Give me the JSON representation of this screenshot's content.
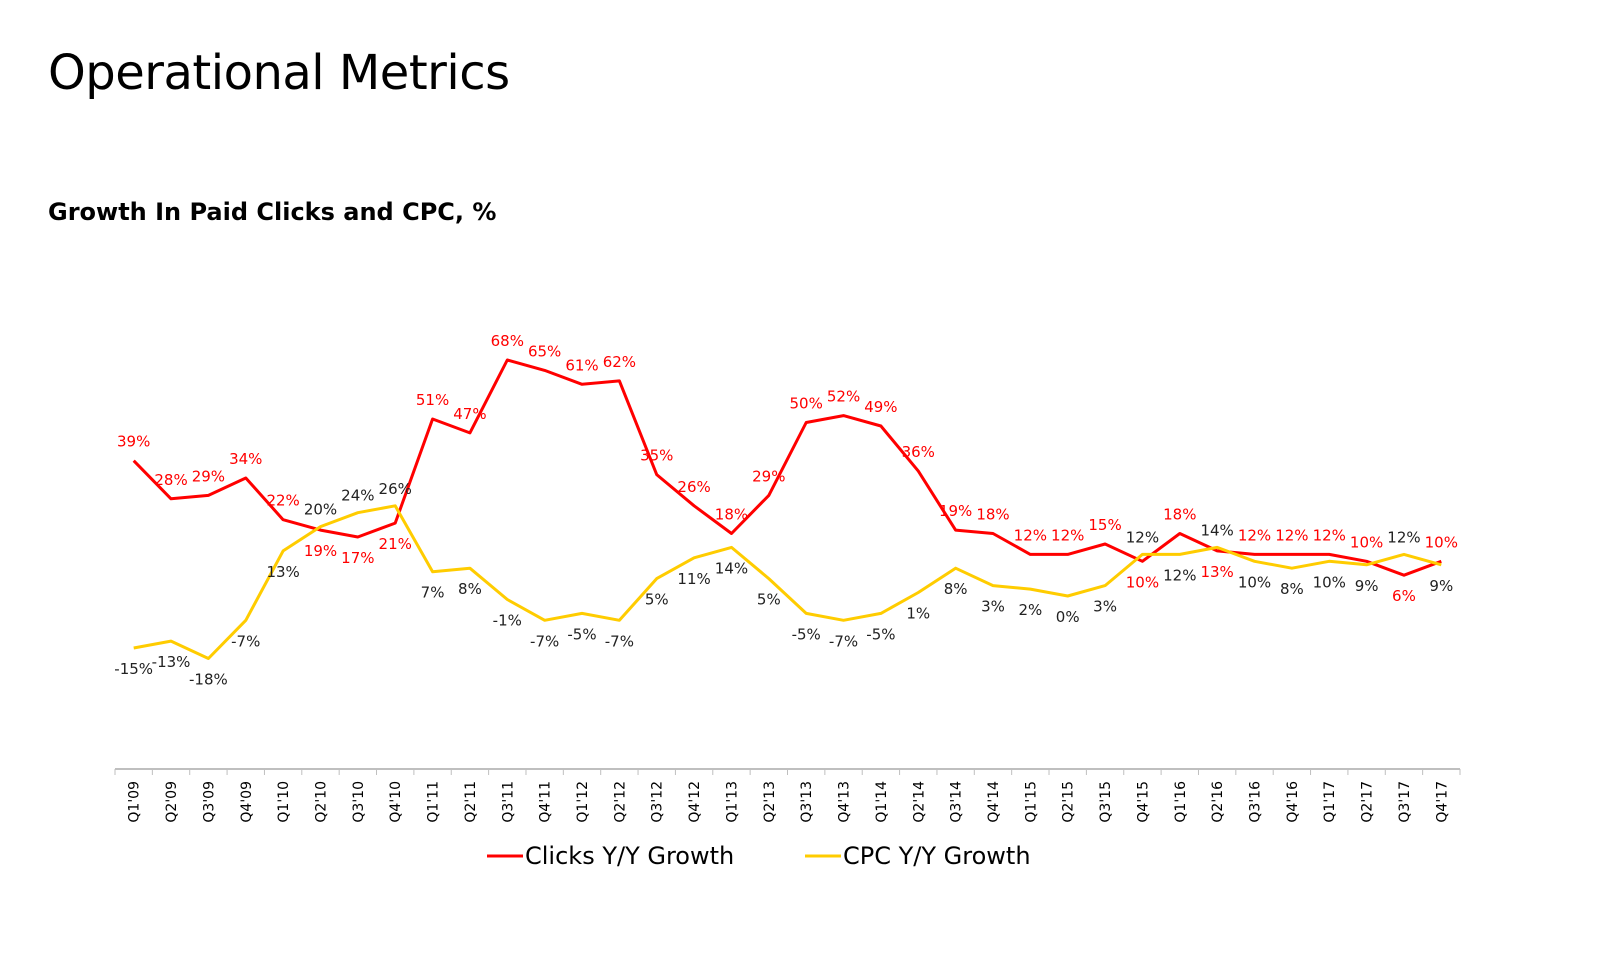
{
  "page": {
    "title": "Operational Metrics",
    "subtitle": "Growth In Paid Clicks and CPC, %"
  },
  "chart_data": {
    "type": "line",
    "title": "Growth In Paid Clicks and CPC, %",
    "xlabel": "",
    "ylabel": "",
    "ylim": [
      -30,
      80
    ],
    "grid": false,
    "legend": "bottom",
    "categories": [
      "Q1'09",
      "Q2'09",
      "Q3'09",
      "Q4'09",
      "Q1'10",
      "Q2'10",
      "Q3'10",
      "Q4'10",
      "Q1'11",
      "Q2'11",
      "Q3'11",
      "Q4'11",
      "Q1'12",
      "Q2'12",
      "Q3'12",
      "Q4'12",
      "Q1'13",
      "Q2'13",
      "Q3'13",
      "Q4'13",
      "Q1'14",
      "Q2'14",
      "Q3'14",
      "Q4'14",
      "Q1'15",
      "Q2'15",
      "Q3'15",
      "Q4'15",
      "Q1'16",
      "Q2'16",
      "Q3'16",
      "Q4'16",
      "Q1'17",
      "Q2'17",
      "Q3'17",
      "Q4'17"
    ],
    "series": [
      {
        "name": "Clicks Y/Y Growth",
        "color": "#ff0000",
        "label_color": "#ff0000",
        "values": [
          39,
          28,
          29,
          34,
          22,
          19,
          17,
          21,
          51,
          47,
          68,
          65,
          61,
          62,
          35,
          26,
          18,
          29,
          50,
          52,
          49,
          36,
          19,
          18,
          12,
          12,
          15,
          10,
          18,
          13,
          12,
          12,
          12,
          10,
          6,
          10
        ],
        "labels": [
          "39%",
          "28%",
          "29%",
          "34%",
          "22%",
          "19%",
          "17%",
          "21%",
          "51%",
          "47%",
          "68%",
          "65%",
          "61%",
          "62%",
          "35%",
          "26%",
          "18%",
          "29%",
          "50%",
          "52%",
          "49%",
          "36%",
          "19%",
          "18%",
          "12%",
          "12%",
          "15%",
          "10%",
          "18%",
          "13%",
          "12%",
          "12%",
          "12%",
          "10%",
          "6%",
          "10%"
        ]
      },
      {
        "name": "CPC Y/Y Growth",
        "color": "#ffcc00",
        "label_color": "#222222",
        "values": [
          -15,
          -13,
          -18,
          -7,
          13,
          20,
          24,
          26,
          7,
          8,
          -1,
          -7,
          -5,
          -7,
          5,
          11,
          14,
          5,
          -5,
          -7,
          -5,
          1,
          8,
          3,
          2,
          0,
          3,
          12,
          12,
          14,
          10,
          8,
          10,
          9,
          12,
          9
        ],
        "labels": [
          "-15%",
          "-13%",
          "-18%",
          "-7%",
          "13%",
          "20%",
          "24%",
          "26%",
          "7%",
          "8%",
          "-1%",
          "-7%",
          "-5%",
          "-7%",
          "5%",
          "11%",
          "14%",
          "5%",
          "-5%",
          "-7%",
          "-5%",
          "1%",
          "8%",
          "3%",
          "2%",
          "0%",
          "3%",
          "12%",
          "12%",
          "14%",
          "10%",
          "8%",
          "10%",
          "9%",
          "12%",
          "9%"
        ]
      }
    ]
  }
}
